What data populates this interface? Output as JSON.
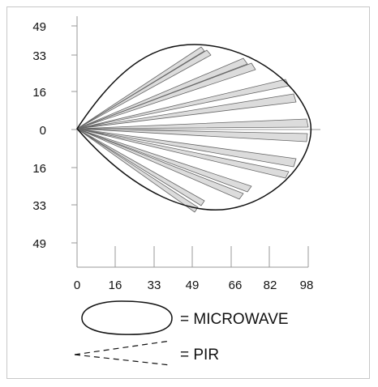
{
  "diagram": {
    "y_ticks": [
      "49",
      "33",
      "16",
      "0",
      "16",
      "33",
      "49"
    ],
    "x_ticks": [
      "0",
      "16",
      "33",
      "49",
      "66",
      "82",
      "98"
    ],
    "microwave_label": "= MICROWAVE",
    "pir_label": "= PIR"
  },
  "colors": {
    "beam_fill": "#dcdcdc",
    "beam_stroke": "#666666",
    "outline": "#111111",
    "grid": "#999999"
  }
}
